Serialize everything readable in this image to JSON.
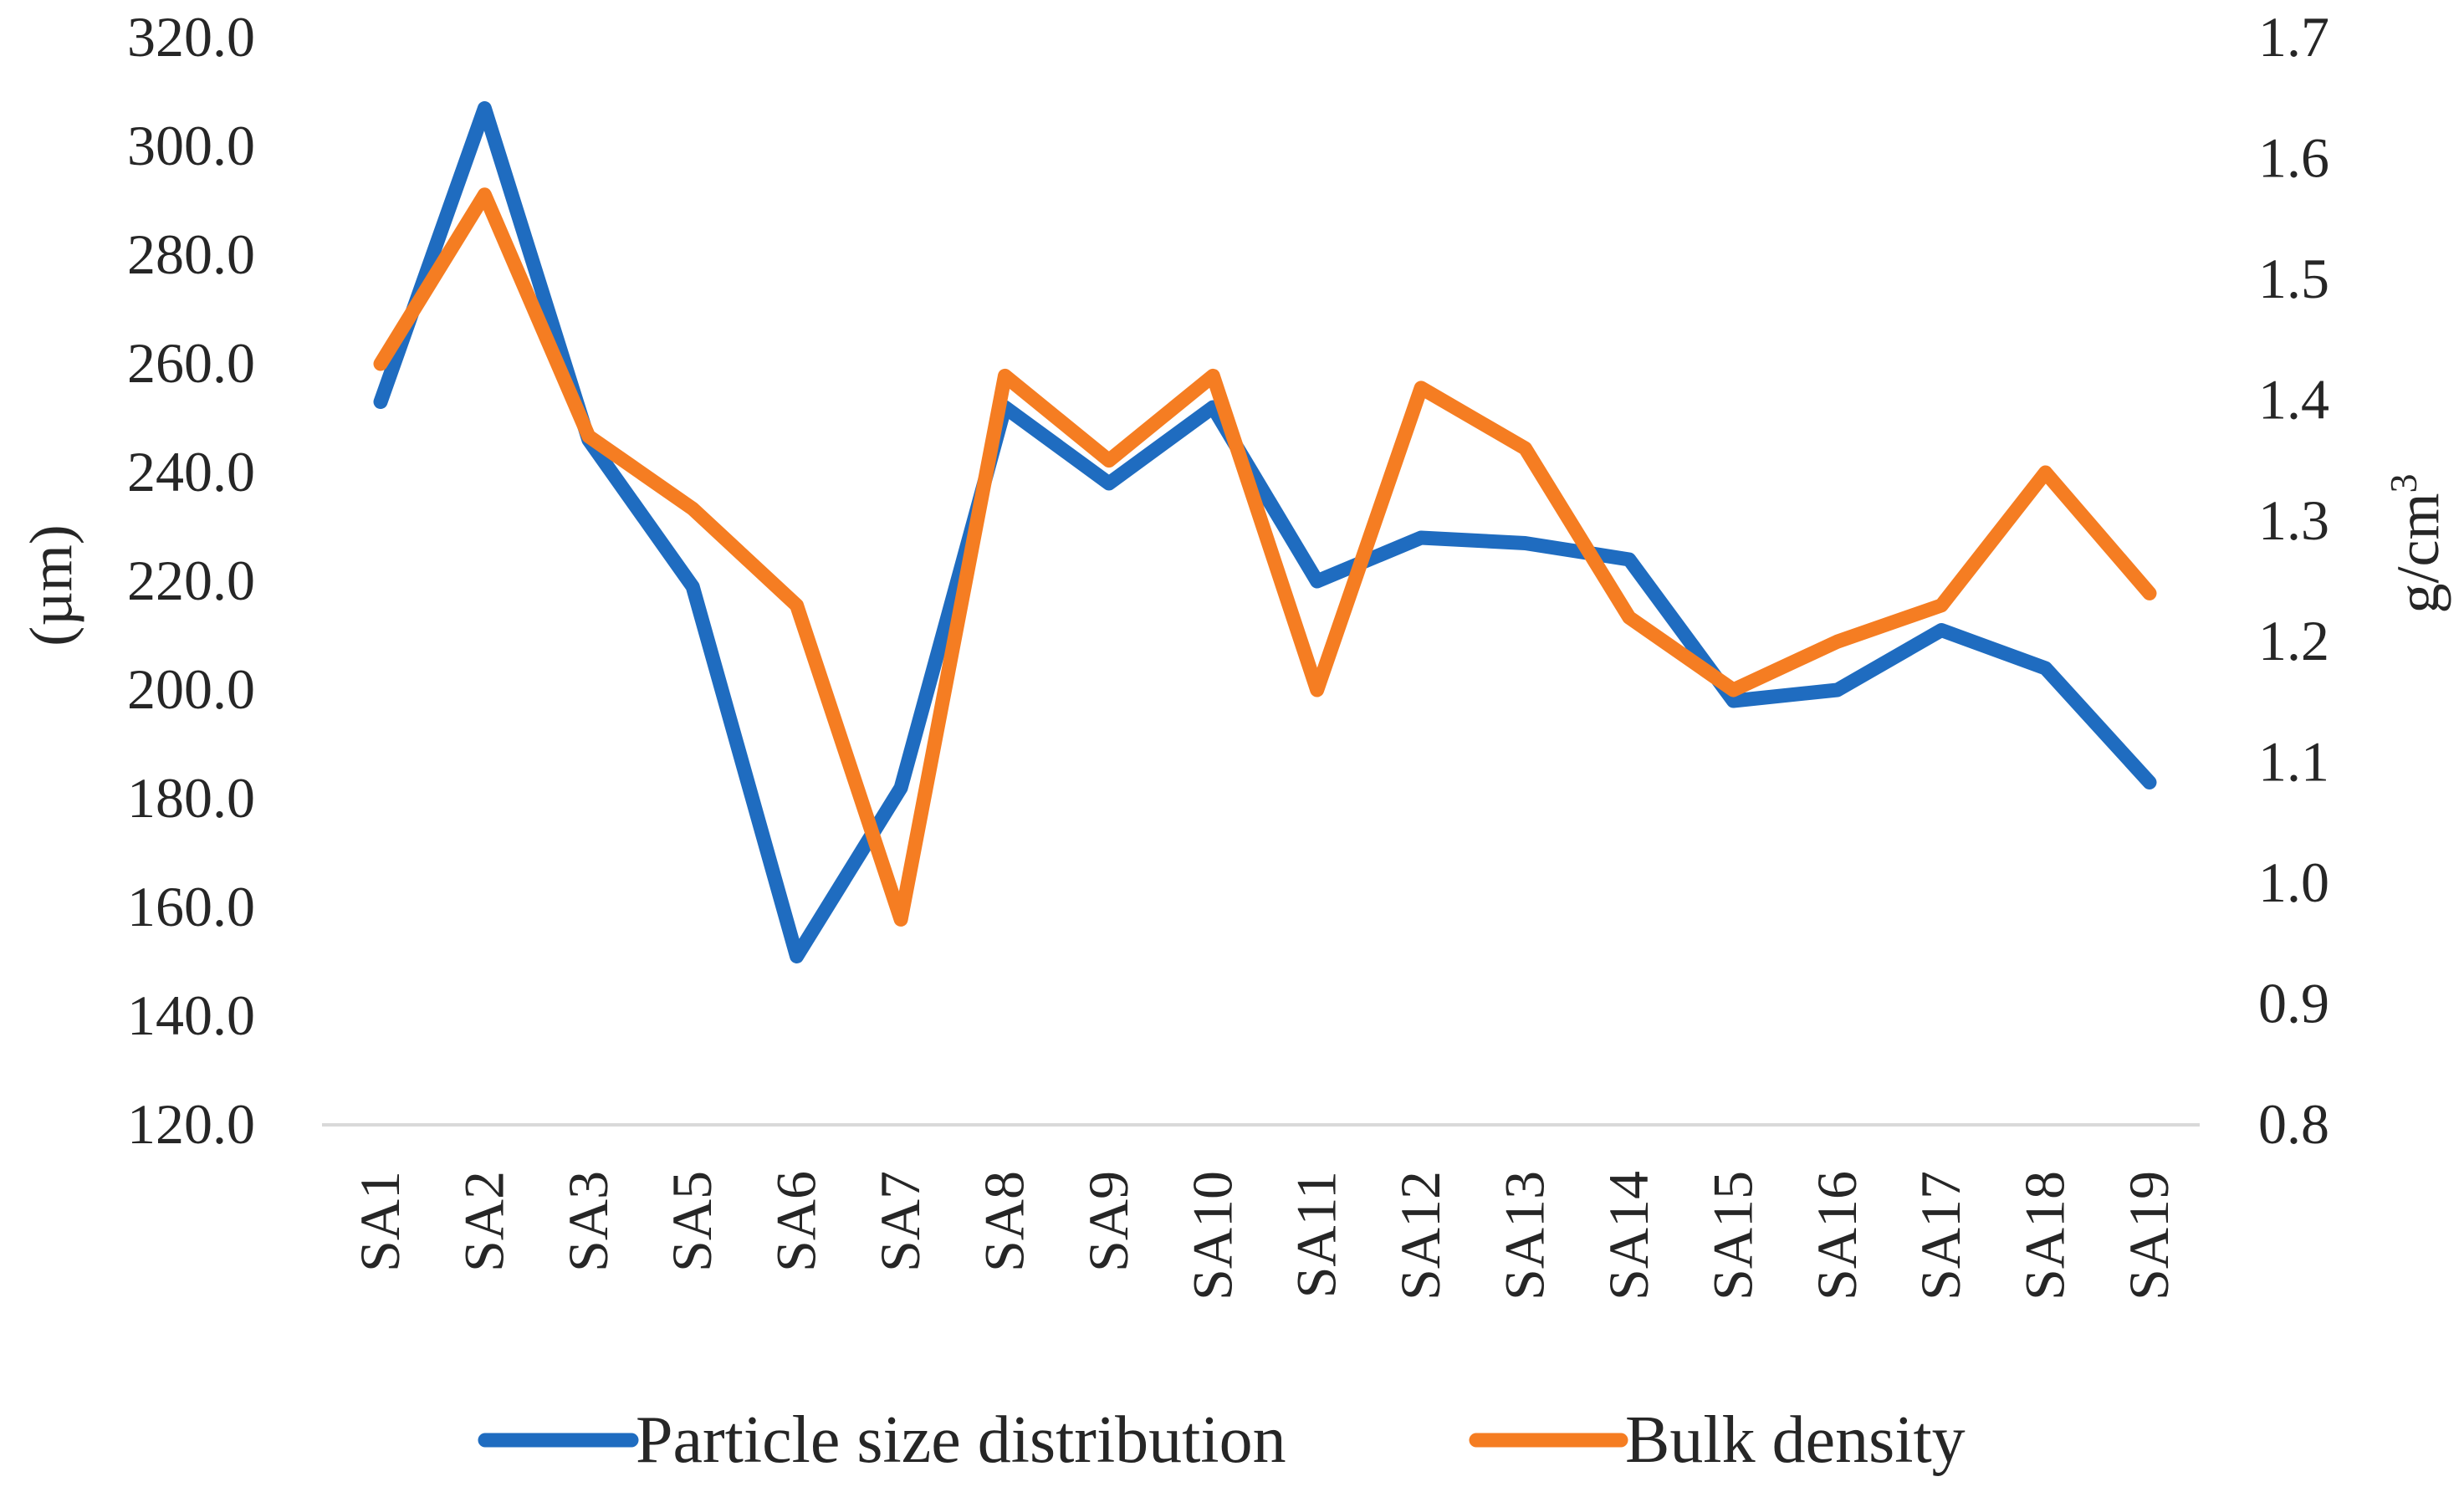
{
  "chart_data": {
    "type": "line",
    "title": "",
    "xlabel": "",
    "ylabel": "(µm)",
    "y2label_base": "g/cm",
    "y2label_sup": "3",
    "categories": [
      "SA1",
      "SA2",
      "SA3",
      "SA5",
      "SA6",
      "SA7",
      "SA8",
      "SA9",
      "SA10",
      "SA11",
      "SA12",
      "SA13",
      "SA14",
      "SA15",
      "SA16",
      "SA17",
      "SA18",
      "SA19"
    ],
    "ylim": [
      120,
      320
    ],
    "y2lim": [
      0.8,
      1.7
    ],
    "yticks": [
      "320.0",
      "300.0",
      "280.0",
      "260.0",
      "240.0",
      "220.0",
      "200.0",
      "180.0",
      "160.0",
      "140.0",
      "120.0"
    ],
    "y2ticks": [
      "1.7",
      "1.6",
      "1.5",
      "1.4",
      "1.3",
      "1.2",
      "1.1",
      "1.0",
      "0.9",
      "0.8"
    ],
    "legend_position": "bottom",
    "series": [
      {
        "name": "Particle size distribution",
        "axis": "left",
        "color": "#1f6cc0",
        "values": [
          253,
          307,
          246,
          219,
          151,
          182,
          252,
          238,
          252,
          220,
          228,
          227,
          224,
          198,
          200,
          211,
          204,
          183
        ]
      },
      {
        "name": "Bulk density",
        "axis": "right",
        "color": "#f57d22",
        "values": [
          1.43,
          1.57,
          1.37,
          1.31,
          1.23,
          0.97,
          1.42,
          1.35,
          1.42,
          1.16,
          1.41,
          1.36,
          1.22,
          1.16,
          1.2,
          1.23,
          1.34,
          1.24
        ]
      }
    ]
  }
}
